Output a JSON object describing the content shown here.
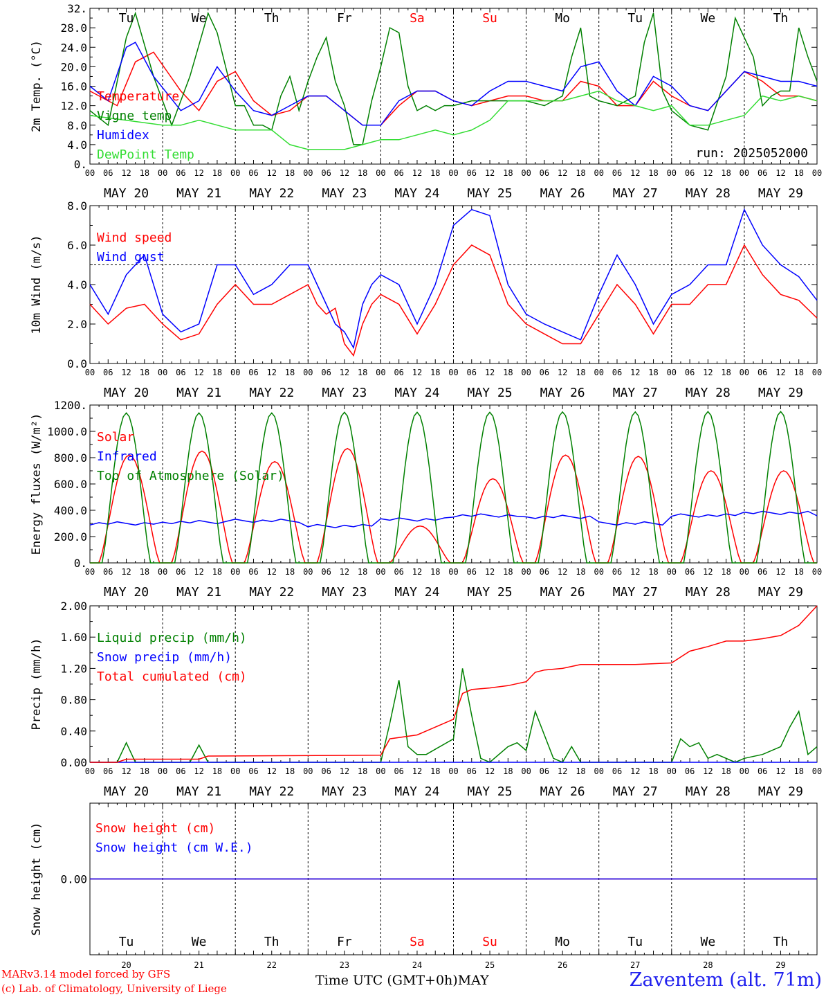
{
  "location": "Zaventem (alt. 71m)",
  "credit_line1": "MARv3.14 model forced by GFS",
  "credit_line2": "(c) Lab. of Climatology, University of Liege",
  "xaxis_title": "Time UTC (GMT+0h)",
  "month": "MAY",
  "run": "run: 2025052000",
  "hour_ticks": [
    "00",
    "06",
    "12",
    "18"
  ],
  "date_labels": [
    "MAY 20",
    "MAY 21",
    "MAY 22",
    "MAY 23",
    "MAY 24",
    "MAY 25",
    "MAY 26",
    "MAY 27",
    "MAY 28",
    "MAY 29"
  ],
  "day_names": [
    "Tu",
    "We",
    "Th",
    "Fr",
    "Sa",
    "Su",
    "Mo",
    "Tu",
    "We",
    "Th"
  ],
  "day_numbers": [
    "20",
    "21",
    "22",
    "23",
    "24",
    "25",
    "26",
    "27",
    "28",
    "29"
  ],
  "colors": {
    "weekday": "#000000",
    "weekend": "#ff0000",
    "red": "#ff0000",
    "green": "#008000",
    "blue": "#0000ff",
    "lightgreen": "#33dd33"
  },
  "chart_data": [
    {
      "type": "line",
      "ylabel": "2m Temp. (°C)",
      "ylim": [
        0,
        32
      ],
      "yticks": [
        "0.",
        "4.0",
        "8.0",
        "12.0",
        "16.0",
        "20.0",
        "24.0",
        "28.0",
        "32."
      ],
      "x_unit": "hours since MAY 20 00 UTC",
      "series": [
        {
          "name": "Temperature",
          "color": "#ff0000",
          "x": [
            0,
            9,
            15,
            21,
            30,
            36,
            42,
            48,
            54,
            60,
            66,
            72,
            78,
            84,
            90,
            96,
            102,
            108,
            114,
            120,
            126,
            132,
            138,
            144,
            150,
            156,
            162,
            168,
            174,
            180,
            186,
            192,
            198,
            204,
            210,
            216,
            222,
            228,
            234,
            240
          ],
          "values": [
            15,
            12,
            21,
            23,
            15,
            11,
            17,
            19,
            13,
            10,
            11,
            14,
            14,
            11,
            8,
            8,
            12,
            15,
            15,
            13,
            12,
            13,
            14,
            14,
            13,
            13,
            17,
            16,
            12,
            12,
            17,
            14,
            12,
            11,
            15,
            19,
            17,
            14,
            14,
            13
          ]
        },
        {
          "name": "Vigne temp",
          "color": "#008000",
          "x": [
            0,
            6,
            12,
            15,
            21,
            27,
            33,
            39,
            42,
            48,
            51,
            54,
            57,
            60,
            63,
            66,
            69,
            72,
            75,
            78,
            81,
            84,
            87,
            90,
            93,
            96,
            99,
            102,
            105,
            108,
            111,
            114,
            117,
            120,
            126,
            132,
            138,
            144,
            150,
            156,
            159,
            162,
            165,
            168,
            174,
            180,
            183,
            186,
            189,
            192,
            198,
            204,
            210,
            213,
            216,
            219,
            222,
            225,
            228,
            231,
            234,
            237,
            240
          ],
          "values": [
            11,
            8,
            26,
            31,
            18,
            8,
            18,
            31,
            27,
            12,
            12,
            8,
            8,
            7,
            14,
            18,
            11,
            17,
            22,
            26,
            17,
            12,
            4,
            4,
            13,
            20,
            28,
            27,
            16,
            11,
            12,
            11,
            12,
            12,
            13,
            13,
            13,
            13,
            12,
            14,
            22,
            28,
            14,
            13,
            12,
            14,
            25,
            31,
            15,
            11,
            8,
            7,
            18,
            30,
            26,
            22,
            12,
            14,
            15,
            15,
            28,
            22,
            17
          ]
        },
        {
          "name": "Humidex",
          "color": "#0000ff",
          "x": [
            0,
            6,
            12,
            15,
            21,
            30,
            36,
            42,
            48,
            54,
            60,
            66,
            72,
            78,
            84,
            90,
            96,
            102,
            108,
            114,
            120,
            126,
            132,
            138,
            144,
            150,
            156,
            162,
            168,
            174,
            180,
            186,
            192,
            198,
            204,
            210,
            216,
            222,
            228,
            234,
            240
          ],
          "values": [
            16,
            13,
            24,
            25,
            18,
            11,
            13,
            20,
            15,
            11,
            10,
            12,
            14,
            14,
            11,
            8,
            8,
            13,
            15,
            15,
            13,
            12,
            15,
            17,
            17,
            16,
            15,
            20,
            21,
            15,
            12,
            18,
            16,
            12,
            11,
            15,
            19,
            18,
            17,
            17,
            16
          ]
        },
        {
          "name": "DewPoint Temp",
          "color": "#33dd33",
          "x": [
            0,
            12,
            24,
            30,
            36,
            48,
            60,
            66,
            72,
            78,
            84,
            90,
            96,
            102,
            108,
            114,
            120,
            126,
            132,
            138,
            144,
            150,
            156,
            162,
            168,
            174,
            180,
            186,
            192,
            198,
            204,
            210,
            216,
            222,
            228,
            234,
            240
          ],
          "values": [
            10,
            9,
            8,
            8,
            9,
            7,
            7,
            4,
            3,
            3,
            3,
            4,
            5,
            5,
            6,
            7,
            6,
            7,
            9,
            13,
            13,
            13,
            13,
            14,
            15,
            13,
            12,
            11,
            12,
            8,
            8,
            9,
            10,
            14,
            13,
            14,
            13
          ]
        }
      ]
    },
    {
      "type": "line",
      "ylabel": "10m Wind (m/s)",
      "ylim": [
        0,
        8
      ],
      "yticks": [
        "0.0",
        "2.0",
        "4.0",
        "6.0",
        "8.0"
      ],
      "reference_line": 5,
      "series": [
        {
          "name": "Wind speed",
          "color": "#ff0000",
          "x": [
            0,
            6,
            12,
            18,
            24,
            30,
            36,
            42,
            48,
            54,
            60,
            66,
            72,
            75,
            78,
            81,
            84,
            87,
            90,
            93,
            96,
            102,
            108,
            114,
            120,
            126,
            132,
            138,
            144,
            150,
            156,
            162,
            168,
            174,
            180,
            186,
            192,
            198,
            204,
            210,
            216,
            222,
            228,
            234,
            240
          ],
          "values": [
            3,
            2,
            2.8,
            3,
            2,
            1.2,
            1.5,
            3,
            4,
            3,
            3,
            3.5,
            4,
            3,
            2.5,
            2.8,
            1,
            0.4,
            2,
            3,
            3.5,
            3,
            1.5,
            3,
            5,
            6,
            5.5,
            3,
            2,
            1.5,
            1,
            1,
            2.5,
            4,
            3,
            1.5,
            3,
            3,
            4,
            4,
            6,
            4.5,
            3.5,
            3.2,
            2.3
          ]
        },
        {
          "name": "Wind gust",
          "color": "#0000ff",
          "x": [
            0,
            6,
            12,
            18,
            24,
            30,
            36,
            42,
            48,
            54,
            60,
            66,
            72,
            75,
            78,
            81,
            84,
            87,
            90,
            93,
            96,
            102,
            108,
            114,
            120,
            126,
            132,
            138,
            144,
            150,
            156,
            162,
            168,
            174,
            180,
            186,
            192,
            198,
            204,
            210,
            216,
            222,
            228,
            234,
            240
          ],
          "values": [
            4,
            2.5,
            4.5,
            5.5,
            2.5,
            1.6,
            2,
            5,
            5,
            3.5,
            4,
            5,
            5,
            4,
            3,
            2,
            1.6,
            0.8,
            3,
            4,
            4.5,
            4,
            2,
            4,
            7,
            7.8,
            7.5,
            4,
            2.5,
            2,
            1.6,
            1.2,
            3.5,
            5.5,
            4,
            2,
            3.5,
            4,
            5,
            5,
            7.8,
            6,
            5,
            4.4,
            3.2
          ]
        }
      ]
    },
    {
      "type": "line",
      "ylabel": "Energy fluxes (W/m²)",
      "ylim": [
        0,
        1200
      ],
      "yticks": [
        "0.",
        "200.0",
        "400.0",
        "600.0",
        "800.0",
        "1000.0",
        "1200."
      ],
      "series": [
        {
          "name": "Solar",
          "color": "#ff0000",
          "peak_hour": 13,
          "half_width": 10,
          "peaks": [
            820,
            850,
            770,
            870,
            280,
            640,
            820,
            810,
            700,
            700
          ]
        },
        {
          "name": "Infrared",
          "color": "#0000ff",
          "values_by_day": [
            300,
            310,
            320,
            280,
            330,
            360,
            350,
            300,
            360,
            380,
            370
          ]
        },
        {
          "name": "Top of Atmosphere (Solar)",
          "color": "#008000",
          "peak_hour": 12,
          "half_width": 8,
          "peaks": [
            1140,
            1140,
            1140,
            1145,
            1145,
            1145,
            1148,
            1148,
            1150,
            1150
          ]
        }
      ]
    },
    {
      "type": "line",
      "ylabel": "Precip (mm/h)",
      "ylim": [
        0,
        2
      ],
      "yticks": [
        "0.00",
        "0.40",
        "0.80",
        "1.20",
        "1.60",
        "2.00"
      ],
      "series": [
        {
          "name": "Liquid precip (mm/h)",
          "color": "#008000",
          "x": [
            0,
            9,
            12,
            15,
            33,
            36,
            39,
            96,
            99,
            102,
            105,
            108,
            111,
            120,
            123,
            126,
            129,
            132,
            138,
            141,
            144,
            147,
            153,
            156,
            159,
            162,
            192,
            195,
            198,
            201,
            204,
            207,
            213,
            216,
            222,
            228,
            231,
            234,
            237,
            240
          ],
          "values": [
            0,
            0,
            0.25,
            0,
            0,
            0.22,
            0,
            0,
            0.5,
            1.05,
            0.2,
            0.1,
            0.1,
            0.3,
            1.2,
            0.6,
            0.05,
            0,
            0.2,
            0.25,
            0.15,
            0.65,
            0.05,
            0,
            0.2,
            0,
            0,
            0.3,
            0.2,
            0.25,
            0.05,
            0.1,
            0,
            0.05,
            0.1,
            0.2,
            0.45,
            0.65,
            0.1,
            0.2
          ]
        },
        {
          "name": "Snow precip (mm/h)",
          "color": "#0000ff",
          "x": [
            0,
            240
          ],
          "values": [
            0,
            0
          ]
        },
        {
          "name": "Total cumulated (cm)",
          "color": "#ff0000",
          "x": [
            0,
            9,
            12,
            36,
            39,
            96,
            99,
            108,
            114,
            120,
            123,
            126,
            132,
            138,
            144,
            147,
            150,
            156,
            162,
            180,
            192,
            198,
            204,
            210,
            216,
            222,
            228,
            234,
            240
          ],
          "values": [
            0,
            0,
            0.04,
            0.04,
            0.08,
            0.09,
            0.3,
            0.35,
            0.45,
            0.55,
            0.88,
            0.93,
            0.95,
            0.98,
            1.03,
            1.15,
            1.18,
            1.2,
            1.25,
            1.25,
            1.27,
            1.42,
            1.48,
            1.55,
            1.55,
            1.58,
            1.62,
            1.75,
            2.0
          ]
        }
      ]
    },
    {
      "type": "line",
      "ylabel": "Snow height (cm)",
      "yticks": [
        "0.00"
      ],
      "series": [
        {
          "name": "Snow height (cm)",
          "color": "#ff0000",
          "x": [
            0,
            240
          ],
          "values": [
            0,
            0
          ]
        },
        {
          "name": "Snow height (cm W.E.)",
          "color": "#0000ff",
          "x": [
            0,
            240
          ],
          "values": [
            0,
            0
          ]
        }
      ]
    }
  ]
}
